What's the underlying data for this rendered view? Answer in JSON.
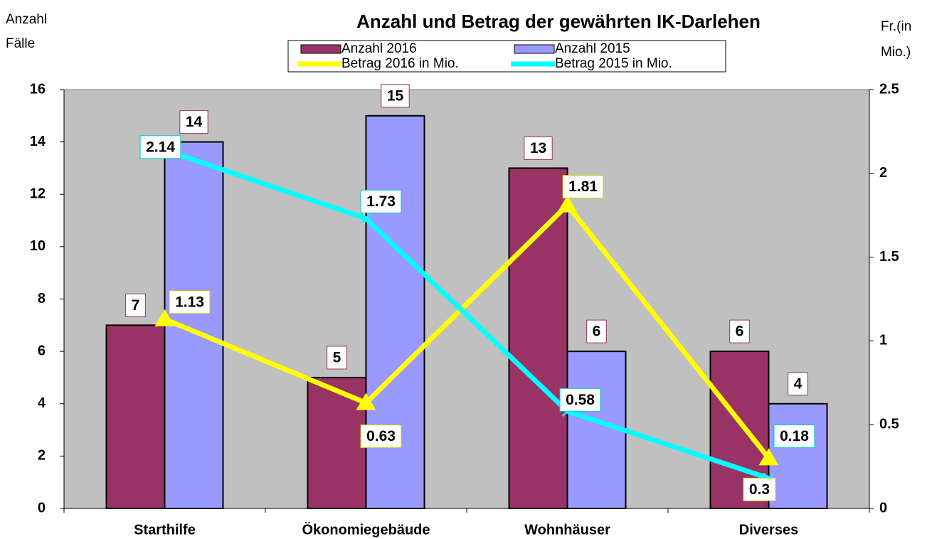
{
  "chart_data": {
    "type": "bar_line",
    "title": "Anzahl und Betrag der gewährten IK-Darlehen",
    "y_label": [
      "Anzahl",
      "Fälle"
    ],
    "y2_label": [
      "Fr.(in",
      "Mio.)"
    ],
    "categories": [
      "Starthilfe",
      "Ökonomiegebäude",
      "Wohnhäuser",
      "Diverses"
    ],
    "series": [
      {
        "name": "Anzahl 2016",
        "color": "#993366",
        "type": "bar",
        "values": [
          7,
          5,
          13,
          6
        ]
      },
      {
        "name": "Anzahl 2015",
        "color": "#9999ff",
        "type": "bar",
        "values": [
          14,
          15,
          6,
          4
        ]
      },
      {
        "name": "Betrag 2016 in Mio.",
        "color": "#ffff00",
        "type": "line",
        "axis": "y2",
        "values": [
          1.13,
          0.63,
          1.81,
          0.3
        ]
      },
      {
        "name": "Betrag 2015 in  Mio.",
        "color": "#00ffff",
        "type": "line",
        "axis": "y2",
        "values": [
          2.14,
          1.73,
          0.58,
          0.18
        ]
      }
    ],
    "ylim": [
      0,
      16
    ],
    "yticks": [
      0,
      2,
      4,
      6,
      8,
      10,
      12,
      14,
      16
    ],
    "y2lim": [
      0,
      2.5
    ],
    "y2ticks": [
      0,
      0.5,
      1,
      1.5,
      2,
      2.5
    ],
    "background": "#c0c0c0"
  }
}
